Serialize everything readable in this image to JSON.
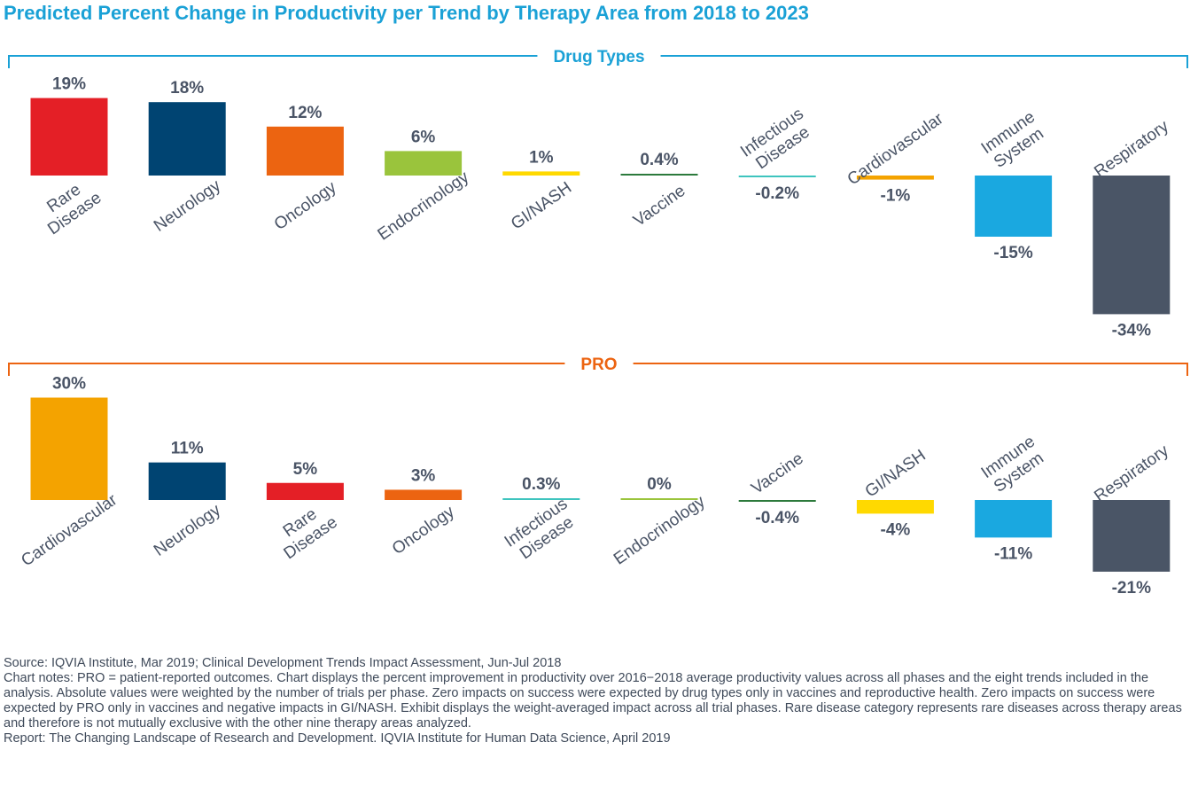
{
  "title": "Predicted Percent Change in Productivity per Trend by Therapy Area from 2018 to 2023",
  "chart_data": [
    {
      "type": "bar",
      "section": "Drug Types",
      "color": "#1aa1d6",
      "categories": [
        [
          "Rare",
          "Disease"
        ],
        [
          "Neurology"
        ],
        [
          "Oncology"
        ],
        [
          "Endocrinology"
        ],
        [
          "GI/NASH"
        ],
        [
          "Vaccine"
        ],
        [
          "Infectious",
          "Disease"
        ],
        [
          "Cardiovascular"
        ],
        [
          "Immune",
          "System"
        ],
        [
          "Respiratory"
        ]
      ],
      "values": [
        19,
        18,
        12,
        6,
        1,
        0.4,
        -0.2,
        -1,
        -15,
        -34
      ],
      "labels": [
        "19%",
        "18%",
        "12%",
        "6%",
        "1%",
        "0.4%",
        "-0.2%",
        "-1%",
        "-15%",
        "-34%"
      ],
      "colors": [
        "#e41f26",
        "#004472",
        "#ec6411",
        "#9ac43c",
        "#ffd900",
        "#2c7a3c",
        "#3ec4be",
        "#f4a300",
        "#1aa8e0",
        "#4a5566"
      ]
    },
    {
      "type": "bar",
      "section": "PRO",
      "color": "#ec6411",
      "categories": [
        [
          "Cardiovascular"
        ],
        [
          "Neurology"
        ],
        [
          "Rare",
          "Disease"
        ],
        [
          "Oncology"
        ],
        [
          "Infectious",
          "Disease"
        ],
        [
          "Endocrinology"
        ],
        [
          "Vaccine"
        ],
        [
          "GI/NASH"
        ],
        [
          "Immune",
          "System"
        ],
        [
          "Respiratory"
        ]
      ],
      "values": [
        30,
        11,
        5,
        3,
        0.3,
        0,
        -0.4,
        -4,
        -11,
        -21
      ],
      "labels": [
        "30%",
        "11%",
        "5%",
        "3%",
        "0.3%",
        "0%",
        "-0.4%",
        "-4%",
        "-11%",
        "-21%"
      ],
      "colors": [
        "#f4a300",
        "#004472",
        "#e41f26",
        "#ec6411",
        "#3ec4be",
        "#9ac43c",
        "#2c7a3c",
        "#ffd900",
        "#1aa8e0",
        "#4a5566"
      ]
    }
  ],
  "notes": {
    "source": "Source: IQVIA Institute, Mar 2019; Clinical Development Trends Impact Assessment, Jun-Jul 2018",
    "chart_notes": "Chart notes: PRO = patient-reported outcomes. Chart displays the percent improvement in productivity over 2016−2018 average productivity values across all phases and the eight trends included in the analysis. Absolute values were weighted by the number of trials per phase. Zero impacts on success were expected by drug types only in vaccines and reproductive health. Zero impacts on success were expected by PRO only in vaccines and negative impacts in GI/NASH. Exhibit displays the weight-averaged impact across all trial phases. Rare disease category represents rare diseases across therapy areas and therefore is not mutually exclusive with the other nine therapy areas analyzed.",
    "report": "Report: The Changing Landscape of Research and Development. IQVIA Institute for Human Data Science, April 2019"
  }
}
